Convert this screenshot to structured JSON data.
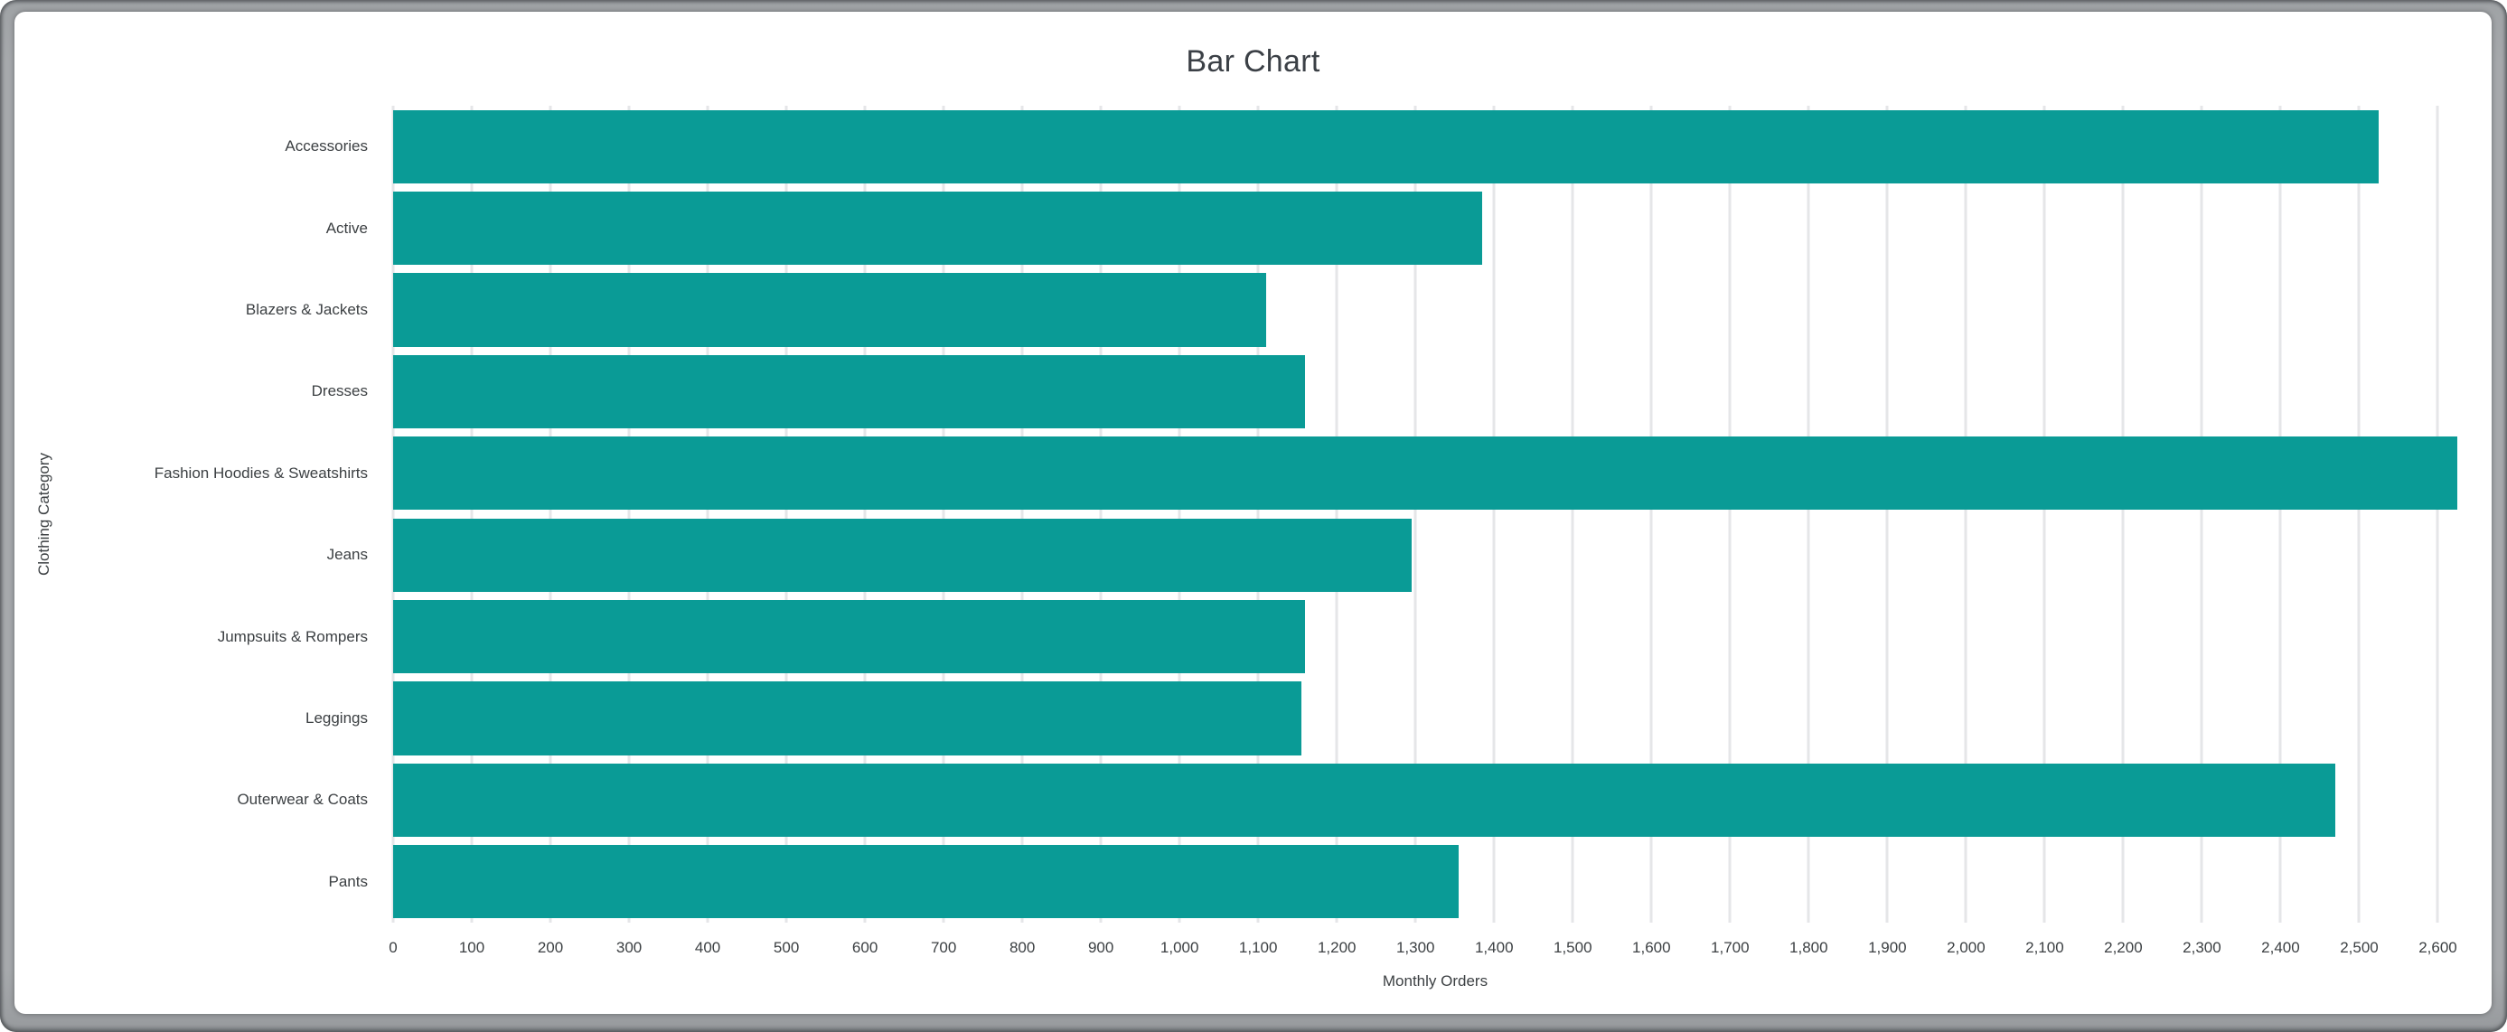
{
  "chart_data": {
    "type": "bar",
    "orientation": "horizontal",
    "title": "Bar Chart",
    "xlabel": "Monthly Orders",
    "ylabel": "Clothing Category",
    "categories": [
      "Accessories",
      "Active",
      "Blazers & Jackets",
      "Dresses",
      "Fashion Hoodies & Sweatshirts",
      "Jeans",
      "Jumpsuits & Rompers",
      "Leggings",
      "Outerwear & Coats",
      "Pants"
    ],
    "values": [
      2525,
      1385,
      1110,
      1160,
      2625,
      1295,
      1160,
      1155,
      2470,
      1355
    ],
    "xlim": [
      0,
      2650
    ],
    "x_tick_values": [
      0,
      100,
      200,
      300,
      400,
      500,
      600,
      700,
      800,
      900,
      1000,
      1100,
      1200,
      1300,
      1400,
      1500,
      1600,
      1700,
      1800,
      1900,
      2000,
      2100,
      2200,
      2300,
      2400,
      2500,
      2600
    ],
    "x_tick_labels": [
      "0",
      "100",
      "200",
      "300",
      "400",
      "500",
      "600",
      "700",
      "800",
      "900",
      "1,000",
      "1,100",
      "1,200",
      "1,300",
      "1,400",
      "1,500",
      "1,600",
      "1,700",
      "1,800",
      "1,900",
      "2,000",
      "2,100",
      "2,200",
      "2,300",
      "2,400",
      "2,500",
      "2,600"
    ],
    "grid": true,
    "legend": false,
    "bar_color": "#0a9b96",
    "gridline_color": "#e5e6e8",
    "label_color": "#3c4043",
    "title_color": "#3b4046"
  }
}
